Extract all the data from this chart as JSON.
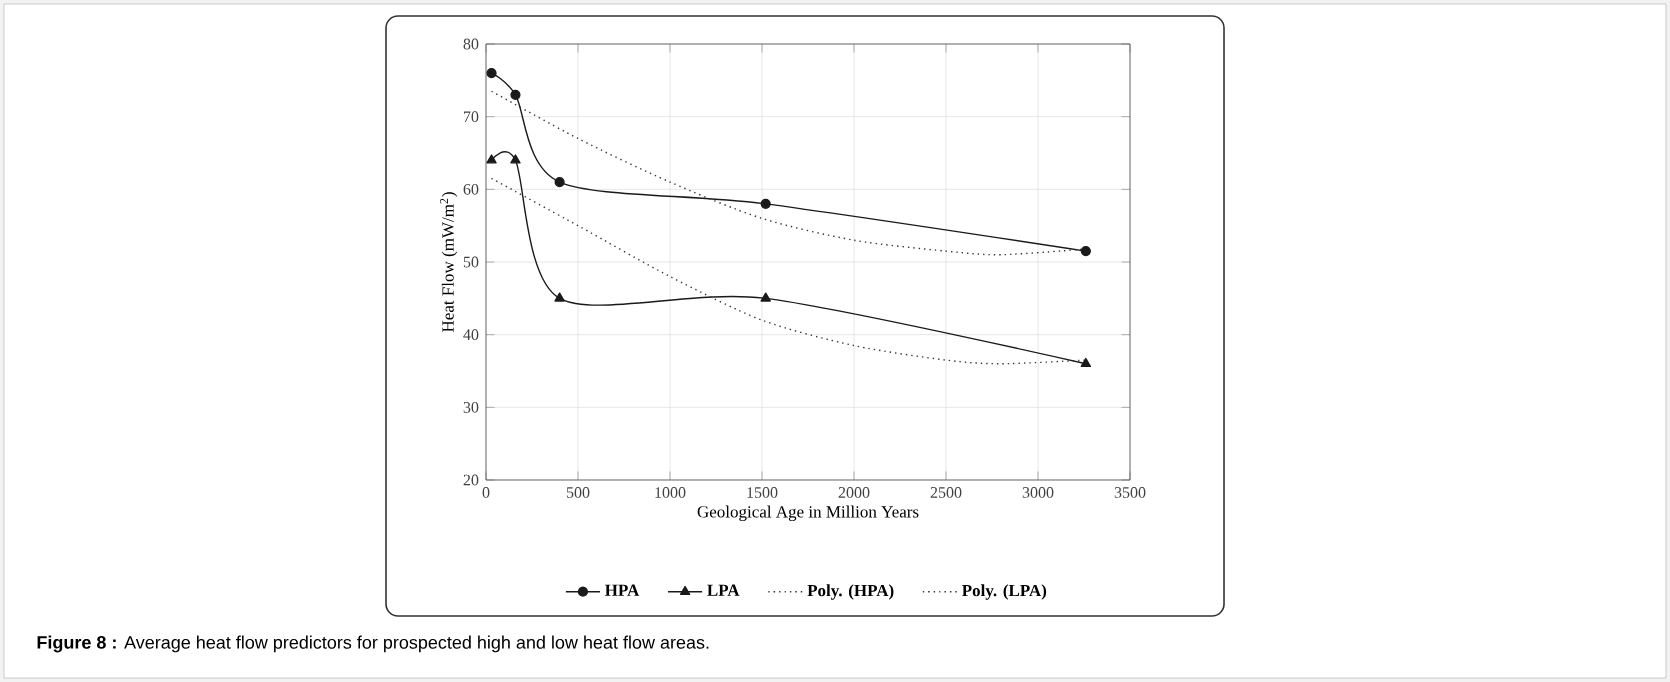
{
  "chart_data": {
    "type": "line",
    "xlabel": "Geological Age in Million Years",
    "ylabel": "Heat Flow (mW/m$^{2}$)",
    "xlim": [
      0,
      3500
    ],
    "xticks": [
      0,
      500,
      1000,
      1500,
      2000,
      2500,
      3000,
      3500
    ],
    "ylim": [
      20,
      80
    ],
    "yticks": [
      20,
      30,
      40,
      50,
      60,
      70,
      80
    ],
    "grid": true,
    "legend": "bottom",
    "series": [
      {
        "name": "HPA",
        "color": "#1a1a1a",
        "marker": "circle",
        "line_style": "solid",
        "x": [
          30,
          160,
          400,
          1520,
          3260
        ],
        "values": [
          76,
          73,
          61,
          58,
          51.5
        ]
      },
      {
        "name": "LPA",
        "color": "#1a1a1a",
        "marker": "triangle",
        "line_style": "solid",
        "x": [
          30,
          160,
          400,
          1520,
          3260
        ],
        "values": [
          64,
          64,
          45,
          45,
          36
        ]
      },
      {
        "name": "Poly. (HPA)",
        "color": "#333333",
        "marker": "none",
        "line_style": "dotted",
        "x": [
          30,
          500,
          1000,
          1500,
          2000,
          2500,
          2800,
          3260
        ],
        "values": [
          73.5,
          67,
          61,
          56,
          53,
          51.5,
          51,
          51.8
        ]
      },
      {
        "name": "Poly. (LPA)",
        "color": "#333333",
        "marker": "none",
        "line_style": "dotted",
        "x": [
          30,
          500,
          1000,
          1500,
          2000,
          2500,
          2800,
          3260
        ],
        "values": [
          61.5,
          55,
          48,
          42,
          38.5,
          36.5,
          36,
          36.5
        ]
      }
    ],
    "annotations": [
      "**Figure 8 :** Average heat flow predictors for prospected high and low heat flow areas."
    ]
  }
}
